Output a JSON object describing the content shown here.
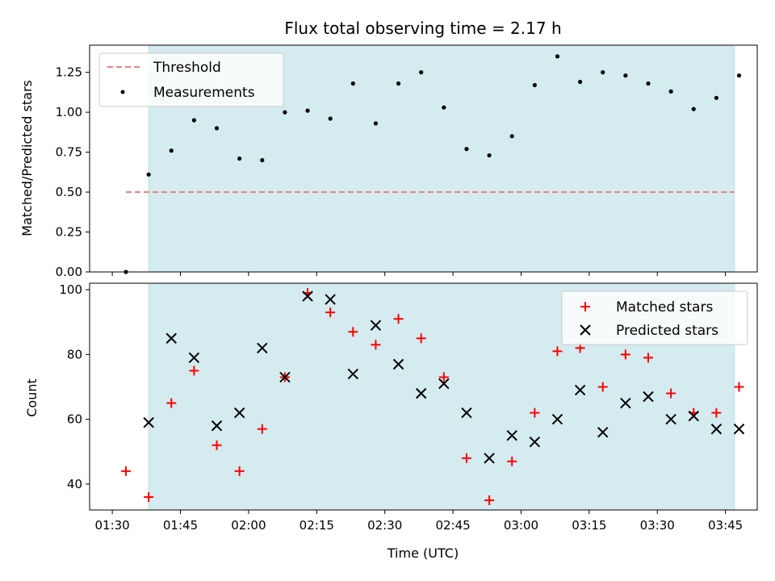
{
  "chart_data": [
    {
      "type": "scatter",
      "title": "Flux total observing time = 2.17 h",
      "xlabel": "",
      "ylabel": "Matched/Predicted stars",
      "ylim": [
        0,
        1.42
      ],
      "xlim": [
        "01:25",
        "03:52"
      ],
      "yticks": [
        "0.00",
        "0.25",
        "0.50",
        "0.75",
        "1.00",
        "1.25"
      ],
      "ytick_values": [
        0,
        0.25,
        0.5,
        0.75,
        1.0,
        1.25
      ],
      "shaded_span": [
        "01:38",
        "03:47"
      ],
      "shade_color": "#d4ebf0",
      "threshold": {
        "name": "Threshold",
        "value": 0.5,
        "x_start": "01:33",
        "x_end": "03:47",
        "color": "#f08080"
      },
      "legend": {
        "position": "top-left"
      },
      "series": [
        {
          "name": "Measurements",
          "color": "#000000",
          "x": [
            "01:33",
            "01:38",
            "01:43",
            "01:48",
            "01:53",
            "01:58",
            "02:03",
            "02:08",
            "02:13",
            "02:18",
            "02:23",
            "02:28",
            "02:33",
            "02:38",
            "02:43",
            "02:48",
            "02:53",
            "02:58",
            "03:03",
            "03:08",
            "03:13",
            "03:18",
            "03:23",
            "03:28",
            "03:33",
            "03:38",
            "03:43",
            "03:48"
          ],
          "y": [
            0.0,
            0.61,
            0.76,
            0.95,
            0.9,
            0.71,
            0.7,
            1.0,
            1.01,
            0.96,
            1.18,
            0.93,
            1.18,
            1.25,
            1.03,
            0.77,
            0.73,
            0.85,
            1.17,
            1.35,
            1.19,
            1.25,
            1.23,
            1.18,
            1.13,
            1.02,
            1.09,
            1.23
          ]
        }
      ]
    },
    {
      "type": "scatter",
      "title": "",
      "xlabel": "Time (UTC)",
      "ylabel": "Count",
      "ylim": [
        32,
        102
      ],
      "xlim": [
        "01:25",
        "03:52"
      ],
      "xticks": [
        "01:30",
        "01:45",
        "02:00",
        "02:15",
        "02:30",
        "02:45",
        "03:00",
        "03:15",
        "03:30",
        "03:45"
      ],
      "yticks": [
        "40",
        "60",
        "80",
        "100"
      ],
      "ytick_values": [
        40,
        60,
        80,
        100
      ],
      "shaded_span": [
        "01:38",
        "03:47"
      ],
      "shade_color": "#d4ebf0",
      "legend": {
        "position": "top-right"
      },
      "series": [
        {
          "name": "Matched stars",
          "marker": "plus",
          "color": "#ff0000",
          "x": [
            "01:33",
            "01:38",
            "01:43",
            "01:48",
            "01:53",
            "01:58",
            "02:03",
            "02:08",
            "02:13",
            "02:18",
            "02:23",
            "02:28",
            "02:33",
            "02:38",
            "02:43",
            "02:48",
            "02:53",
            "02:58",
            "03:03",
            "03:08",
            "03:13",
            "03:18",
            "03:23",
            "03:28",
            "03:33",
            "03:38",
            "03:43",
            "03:48"
          ],
          "y": [
            44,
            36,
            65,
            75,
            52,
            44,
            57,
            73,
            99,
            93,
            87,
            83,
            91,
            85,
            73,
            48,
            35,
            47,
            62,
            81,
            82,
            70,
            80,
            79,
            68,
            62,
            62,
            70
          ]
        },
        {
          "name": "Predicted stars",
          "marker": "x",
          "color": "#000000",
          "x": [
            "01:38",
            "01:43",
            "01:48",
            "01:53",
            "01:58",
            "02:03",
            "02:08",
            "02:13",
            "02:18",
            "02:23",
            "02:28",
            "02:33",
            "02:38",
            "02:43",
            "02:48",
            "02:53",
            "02:58",
            "03:03",
            "03:08",
            "03:13",
            "03:18",
            "03:23",
            "03:28",
            "03:33",
            "03:38",
            "03:43",
            "03:48"
          ],
          "y": [
            59,
            85,
            79,
            58,
            62,
            82,
            73,
            98,
            97,
            74,
            89,
            77,
            68,
            71,
            62,
            48,
            55,
            53,
            60,
            69,
            56,
            65,
            67,
            60,
            61,
            57,
            57
          ]
        }
      ]
    }
  ]
}
